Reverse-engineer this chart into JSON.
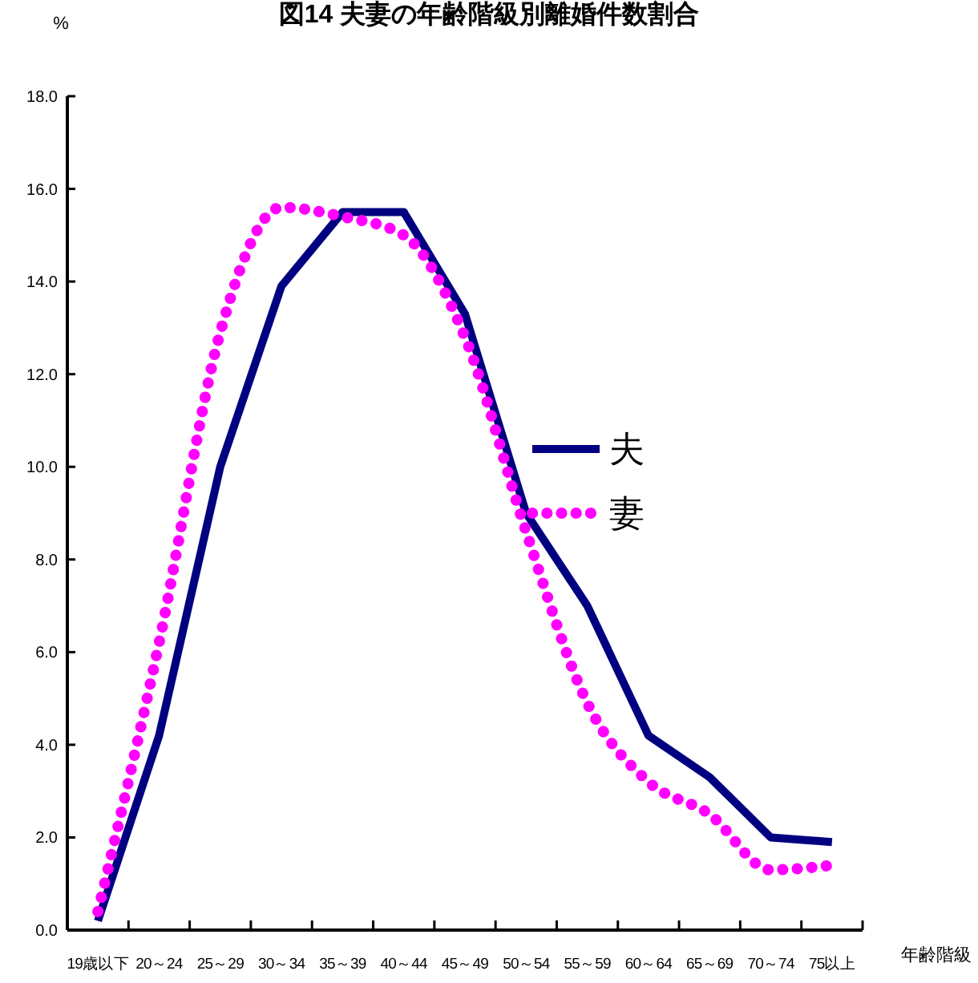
{
  "chart_data": {
    "type": "line",
    "title": "図14  夫妻の年齢階級別離婚件数割合",
    "ylabel": "%",
    "xlabel": "年齢階級",
    "categories": [
      "19歳以下",
      "20～24",
      "25～29",
      "30～34",
      "35～39",
      "40～44",
      "45～49",
      "50～54",
      "55～59",
      "60～64",
      "65～69",
      "70～74",
      "75以上"
    ],
    "series": [
      {
        "name": "夫",
        "color": "#000080",
        "line_style": "solid",
        "values": [
          0.2,
          4.2,
          10.0,
          13.9,
          15.5,
          15.5,
          13.3,
          9.0,
          7.0,
          4.2,
          3.3,
          2.0,
          1.9
        ]
      },
      {
        "name": "妻",
        "color": "#ff00ff",
        "line_style": "dotted",
        "values": [
          0.4,
          6.2,
          12.9,
          15.6,
          15.4,
          15.0,
          12.8,
          8.6,
          4.9,
          3.2,
          2.5,
          1.3,
          1.4
        ]
      }
    ],
    "ylim": [
      0,
      18
    ],
    "yticks": [
      {
        "value": 0,
        "label": "0.0"
      },
      {
        "value": 2,
        "label": "2.0"
      },
      {
        "value": 4,
        "label": "4.0"
      },
      {
        "value": 6,
        "label": "6.0"
      },
      {
        "value": 8,
        "label": "8.0"
      },
      {
        "value": 10,
        "label": "10.0"
      },
      {
        "value": 12,
        "label": "12.0"
      },
      {
        "value": 14,
        "label": "14.0"
      },
      {
        "value": 16,
        "label": "16.0"
      },
      {
        "value": 18,
        "label": "18.0"
      }
    ],
    "grid": false,
    "legend": "right",
    "marker": "none"
  }
}
